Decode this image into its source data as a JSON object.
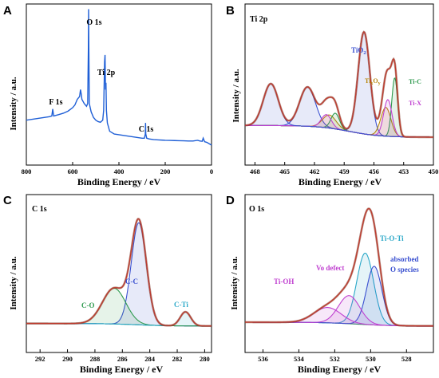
{
  "colors": {
    "axis": "#000000",
    "survey": "#1f5fd6",
    "envelope": "#c0392b",
    "raw": "#7a2a1a",
    "background": "#2e8b57",
    "blue_peak": "#3a50d0",
    "cyan_peak": "#2aa8c8",
    "magenta_peak": "#c040d0",
    "green_peak": "#2e9a4e",
    "gold_ann": "#b8860b"
  },
  "chart_data": [
    {
      "panel": "A",
      "type": "line",
      "title": "",
      "xlabel": "Binding Energy / eV",
      "ylabel": "Intensity / a.u.",
      "xlim": [
        800,
        0
      ],
      "xticks": [
        "800",
        "600",
        "400",
        "200",
        "0"
      ],
      "x_reversed": true,
      "annotations": [
        {
          "text": "O 1s",
          "x": 531,
          "y": 0.94
        },
        {
          "text": "Ti 2p",
          "x": 459,
          "y": 0.62
        },
        {
          "text": "F 1s",
          "x": 686,
          "y": 0.38
        },
        {
          "text": "C 1s",
          "x": 285,
          "y": 0.24
        }
      ],
      "series": [
        {
          "values_x": [
            800,
            780,
            760,
            740,
            720,
            700,
            690,
            686,
            682,
            660,
            640,
            620,
            600,
            590,
            580,
            570,
            566,
            562,
            560,
            550,
            540,
            535,
            532,
            531,
            530,
            528,
            520,
            510,
            500,
            490,
            480,
            470,
            466,
            462,
            460,
            458,
            456,
            454,
            450,
            440,
            420,
            400,
            380,
            360,
            340,
            320,
            300,
            290,
            286,
            285,
            284,
            280,
            270,
            250,
            230,
            210,
            200,
            180,
            160,
            140,
            120,
            100,
            80,
            60,
            50,
            40,
            36,
            30,
            20,
            10,
            0
          ],
          "values_y": [
            0.18,
            0.185,
            0.19,
            0.195,
            0.2,
            0.205,
            0.21,
            0.26,
            0.21,
            0.22,
            0.23,
            0.245,
            0.27,
            0.29,
            0.33,
            0.35,
            0.4,
            0.36,
            0.33,
            0.3,
            0.28,
            0.3,
            0.7,
            0.98,
            0.72,
            0.3,
            0.24,
            0.2,
            0.18,
            0.17,
            0.165,
            0.18,
            0.25,
            0.6,
            0.65,
            0.4,
            0.45,
            0.25,
            0.16,
            0.1,
            0.08,
            0.075,
            0.07,
            0.065,
            0.06,
            0.055,
            0.05,
            0.05,
            0.08,
            0.16,
            0.08,
            0.05,
            0.045,
            0.04,
            0.038,
            0.036,
            0.035,
            0.034,
            0.033,
            0.032,
            0.031,
            0.03,
            0.03,
            0.035,
            0.03,
            0.028,
            0.05,
            0.025,
            0.02,
            0.01,
            0.0
          ]
        }
      ]
    },
    {
      "panel": "B",
      "type": "line",
      "title": "Ti 2p",
      "xlabel": "Binding Energy / eV",
      "ylabel": "Intensity / a.u.",
      "xlim": [
        469,
        450
      ],
      "xticks": [
        "468",
        "465",
        "462",
        "459",
        "456",
        "453",
        "450"
      ],
      "x_reversed": true,
      "annotations": [
        {
          "text": "TiO",
          "sub": "2",
          "x": 456.8
        },
        {
          "text": "Ti",
          "sub": "x",
          "text2": "O",
          "sub2": "y",
          "x": 455.4
        },
        {
          "text": "Ti-C",
          "x": 452.5
        },
        {
          "text": "Ti-X",
          "x": 452.5
        }
      ],
      "series": [
        {
          "name": "TiO2",
          "center": 457.0,
          "fwhm": 1.4,
          "amp": 0.78
        },
        {
          "name": "TiO2 2p1/2",
          "center": 462.7,
          "fwhm": 1.9,
          "amp": 0.3
        },
        {
          "name": "TixOy",
          "center": 454.8,
          "fwhm": 1.2,
          "amp": 0.22
        },
        {
          "name": "TixOy 2p1/2",
          "center": 460.5,
          "fwhm": 1.6,
          "amp": 0.1
        },
        {
          "name": "Ti-C",
          "center": 453.9,
          "fwhm": 0.7,
          "amp": 0.45
        },
        {
          "name": "Ti-C 2p1/2",
          "center": 459.9,
          "fwhm": 1.0,
          "amp": 0.12
        },
        {
          "name": "Ti-X",
          "center": 454.6,
          "fwhm": 1.0,
          "amp": 0.28
        },
        {
          "name": "Ti-X 2p1/2",
          "center": 460.8,
          "fwhm": 1.2,
          "amp": 0.1
        },
        {
          "name": "Ti 2p1/2 high",
          "center": 466.4,
          "fwhm": 1.8,
          "amp": 0.32
        }
      ]
    },
    {
      "panel": "C",
      "type": "line",
      "title": "C 1s",
      "xlabel": "Binding Energy / eV",
      "ylabel": "Intensity / a.u.",
      "xlim": [
        293,
        279.5
      ],
      "xticks": [
        "292",
        "290",
        "288",
        "286",
        "284",
        "282",
        "280"
      ],
      "x_reversed": true,
      "annotations": [
        {
          "text": "C-C",
          "x": 284.7
        },
        {
          "text": "C-O",
          "x": 286.5
        },
        {
          "text": "C-Ti",
          "x": 281.4
        }
      ],
      "series": [
        {
          "name": "C-C",
          "center": 284.8,
          "fwhm": 1.3,
          "amp": 0.8
        },
        {
          "name": "C-O",
          "center": 286.6,
          "fwhm": 2.0,
          "amp": 0.28
        },
        {
          "name": "C-Ti",
          "center": 281.4,
          "fwhm": 0.9,
          "amp": 0.11
        }
      ]
    },
    {
      "panel": "D",
      "type": "line",
      "title": "O 1s",
      "xlabel": "Binding Energy / eV",
      "ylabel": "Intensity / a.u.",
      "xlim": [
        537,
        526.5
      ],
      "xticks": [
        "536",
        "534",
        "532",
        "530",
        "528"
      ],
      "x_reversed": true,
      "annotations": [
        {
          "text": "Ti-O-Ti",
          "x": 529.9
        },
        {
          "text": "absorbed",
          "x": 529.3
        },
        {
          "text": "O species",
          "x": 529.3
        },
        {
          "text": "Vo defect",
          "x": 531.5
        },
        {
          "text": "Ti-OH",
          "x": 532.8
        }
      ],
      "series": [
        {
          "name": "Ti-O-Ti",
          "center": 530.3,
          "fwhm": 1.1,
          "amp": 0.56
        },
        {
          "name": "absorbed O species",
          "center": 529.8,
          "fwhm": 1.0,
          "amp": 0.46
        },
        {
          "name": "Vo defect",
          "center": 531.2,
          "fwhm": 1.4,
          "amp": 0.22
        },
        {
          "name": "Ti-OH",
          "center": 532.4,
          "fwhm": 1.8,
          "amp": 0.12
        }
      ]
    }
  ],
  "text": {
    "panelA": "A",
    "panelB": "B",
    "panelC": "C",
    "panelD": "D",
    "titleB": "Ti 2p",
    "titleC": "C 1s",
    "titleD": "O 1s",
    "xlabel": "Binding Energy / eV",
    "ylabel": "Intensity / a.u.",
    "annA_O": "O 1s",
    "annA_Ti": "Ti 2p",
    "annA_F": "F 1s",
    "annA_C": "C 1s",
    "annB_TiO2": "TiO",
    "annB_TiO2_sub": "2",
    "annB_TixOy_a": "Ti",
    "annB_TixOy_b": "x",
    "annB_TixOy_c": "O",
    "annB_TixOy_d": "y",
    "annB_TiC": "Ti-C",
    "annB_TiX": "Ti-X",
    "annC_CC": "C-C",
    "annC_CO": "C-O",
    "annC_CTi": "C-Ti",
    "annD_TiOTi": "Ti-O-Ti",
    "annD_abs1": "absorbed",
    "annD_abs2": "O species",
    "annD_Vo": "Vo defect",
    "annD_TiOH": "Ti-OH"
  }
}
